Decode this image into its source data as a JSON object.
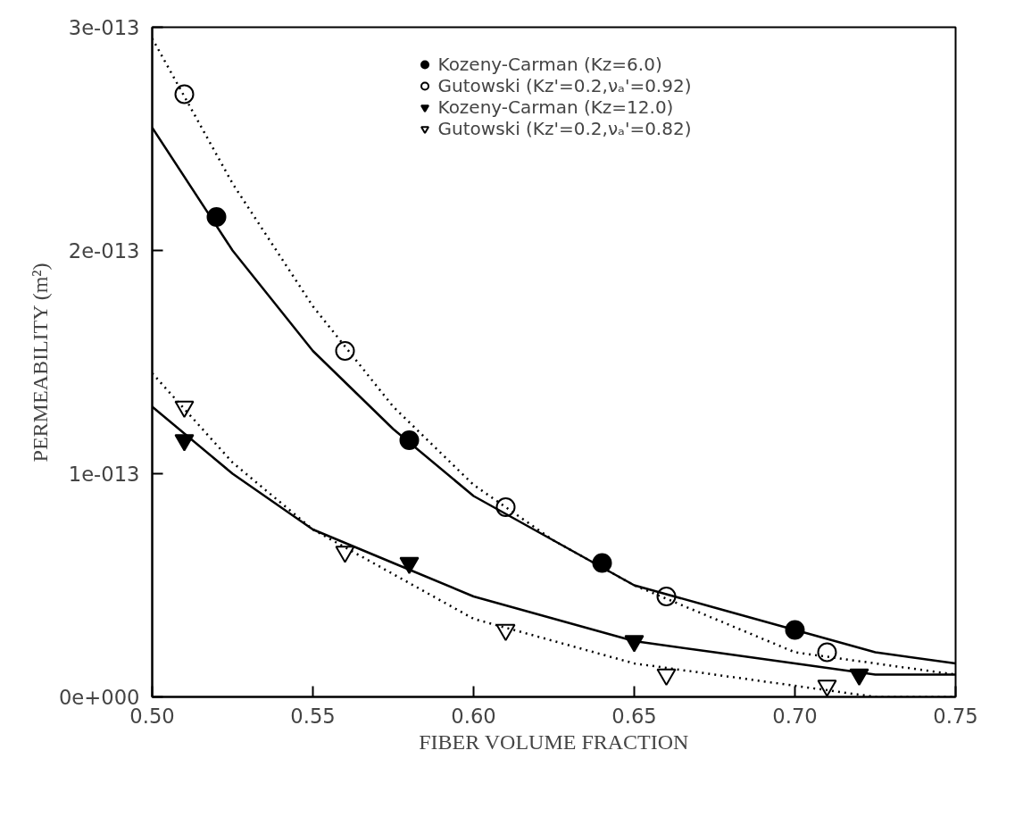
{
  "chart_data": {
    "type": "scatter",
    "xlabel": "FIBER VOLUME FRACTION",
    "ylabel": "PERMEABILITY (m²)",
    "xlim": [
      0.5,
      0.75
    ],
    "xticks": [
      {
        "value": 0.5,
        "label": "0.50"
      },
      {
        "value": 0.55,
        "label": "0.55"
      },
      {
        "value": 0.6,
        "label": "0.60"
      },
      {
        "value": 0.65,
        "label": "0.65"
      },
      {
        "value": 0.7,
        "label": "0.70"
      },
      {
        "value": 0.75,
        "label": "0.75"
      }
    ],
    "ylim": [
      0,
      3e-13
    ],
    "yticks": [
      {
        "value": 0,
        "label": "0e+000"
      },
      {
        "value": 1e-13,
        "label": "1e-013"
      },
      {
        "value": 2e-13,
        "label": "2e-013"
      },
      {
        "value": 3e-13,
        "label": "3e-013"
      }
    ],
    "grid": false,
    "legend": "top",
    "series": [
      {
        "name": "Kozeny-Carman (Kz=6.0)",
        "marker": "circle",
        "color": "#000000",
        "x": [
          0.52,
          0.58,
          0.64,
          0.7
        ],
        "values": [
          2.15e-13,
          1.15e-13,
          6e-14,
          3e-14
        ]
      },
      {
        "name": "Gutowski (Kz'=0.2,νₐ'=0.92)",
        "marker": "circle",
        "color": "#ffffff",
        "x": [
          0.51,
          0.56,
          0.61,
          0.66,
          0.71
        ],
        "values": [
          2.7e-13,
          1.55e-13,
          8.5e-14,
          4.5e-14,
          2e-14
        ]
      },
      {
        "name": "Kozeny-Carman (Kz=12.0)",
        "marker": "triangle",
        "color": "#000000",
        "x": [
          0.51,
          0.58,
          0.65,
          0.72
        ],
        "values": [
          1.15e-13,
          6e-14,
          2.5e-14,
          1e-14
        ]
      },
      {
        "name": "Gutowski (Kz'=0.2,νₐ'=0.82)",
        "marker": "triangle",
        "color": "#ffffff",
        "x": [
          0.51,
          0.56,
          0.61,
          0.66,
          0.71
        ],
        "values": [
          1.3e-13,
          6.5e-14,
          3e-14,
          1e-14,
          5e-15
        ]
      },
      {
        "type": "line",
        "line_style": "solid",
        "color": "#000000",
        "x": [
          0.5,
          0.525,
          0.55,
          0.575,
          0.6,
          0.625,
          0.65,
          0.675,
          0.7,
          0.725,
          0.75
        ],
        "values": [
          2.55e-13,
          2e-13,
          1.55e-13,
          1.2e-13,
          9e-14,
          7e-14,
          5e-14,
          4e-14,
          3e-14,
          2e-14,
          1.5e-14
        ]
      },
      {
        "type": "line",
        "line_style": "dotted",
        "color": "#000000",
        "x": [
          0.5,
          0.525,
          0.55,
          0.575,
          0.6,
          0.625,
          0.65,
          0.675,
          0.7,
          0.725,
          0.75
        ],
        "values": [
          2.95e-13,
          2.3e-13,
          1.75e-13,
          1.3e-13,
          9.5e-14,
          7e-14,
          5e-14,
          3.5e-14,
          2e-14,
          1.5e-14,
          1e-14
        ]
      },
      {
        "type": "line",
        "line_style": "solid",
        "color": "#000000",
        "x": [
          0.5,
          0.525,
          0.55,
          0.575,
          0.6,
          0.625,
          0.65,
          0.675,
          0.7,
          0.725,
          0.75
        ],
        "values": [
          1.3e-13,
          1e-13,
          7.5e-14,
          6e-14,
          4.5e-14,
          3.5e-14,
          2.5e-14,
          2e-14,
          1.5e-14,
          1e-14,
          1e-14
        ]
      },
      {
        "type": "line",
        "line_style": "dotted",
        "color": "#000000",
        "x": [
          0.5,
          0.525,
          0.55,
          0.575,
          0.6,
          0.625,
          0.65,
          0.675,
          0.7,
          0.725,
          0.75
        ],
        "values": [
          1.45e-13,
          1.05e-13,
          7.5e-14,
          5.5e-14,
          3.5e-14,
          2.5e-14,
          1.5e-14,
          1e-14,
          5e-15,
          0.0,
          0.0
        ]
      }
    ]
  }
}
